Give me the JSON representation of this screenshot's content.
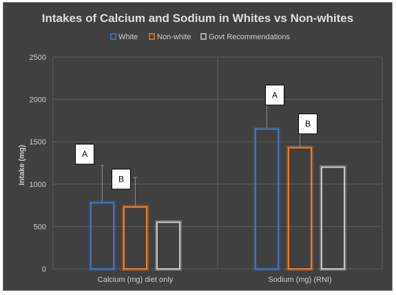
{
  "chart_data": {
    "type": "bar",
    "title": "Intakes of Calcium and Sodium in Whites vs Non-whites",
    "xlabel": "",
    "ylabel": "Intake (mg)",
    "ylim": [
      0,
      2500
    ],
    "yticks": [
      "0",
      "500",
      "1000",
      "1500",
      "2000",
      "2500"
    ],
    "categories": [
      "Calcium (mg) diet only",
      "Sodium (mg) (RNI)"
    ],
    "series": [
      {
        "name": "White",
        "values": [
          780,
          1650
        ],
        "error_upper": [
          1220,
          1950
        ],
        "color": "#4472c4"
      },
      {
        "name": "Non-white",
        "values": [
          730,
          1430
        ],
        "error_upper": [
          1080,
          1610
        ],
        "color": "#ed7d31"
      },
      {
        "name": "Govt Recommendations",
        "values": [
          550,
          1200
        ],
        "color": "#c8c8c8"
      }
    ],
    "annotations": [
      {
        "text": "A",
        "category": 0,
        "series": 0
      },
      {
        "text": "B",
        "category": 0,
        "series": 1
      },
      {
        "text": "A",
        "category": 1,
        "series": 0
      },
      {
        "text": "B",
        "category": 1,
        "series": 1
      }
    ],
    "grid": true,
    "legend_position": "top",
    "background_color": "#404040"
  }
}
